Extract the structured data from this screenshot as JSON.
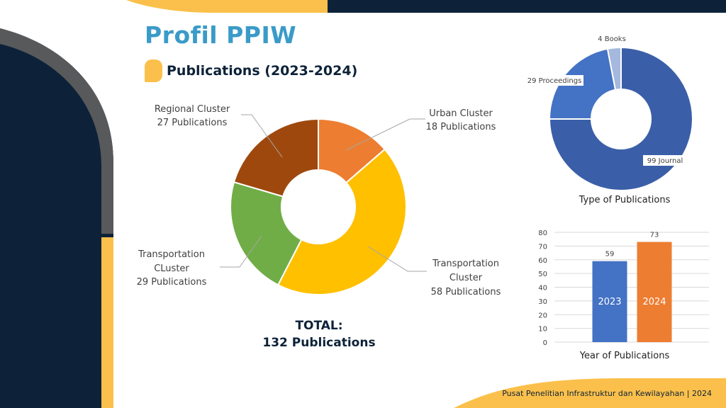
{
  "page": {
    "title": "Profil PPIW",
    "subtitle": "Publications (2023-2024)",
    "total_line1": "TOTAL:",
    "total_line2": "132 Publications",
    "footer": "Pusat Penelitian Infrastruktur dan Kewilayahan | 2024"
  },
  "colors": {
    "navy": "#0d2238",
    "accent_yellow": "#fbc04b",
    "title_blue": "#3a9bc8",
    "dark_gray": "#58595b"
  },
  "chart_data": [
    {
      "type": "pie",
      "donut": true,
      "slices": [
        {
          "label": "Urban Cluster",
          "sublabel": "18 Publications",
          "value": 18,
          "color": "#ed7d31"
        },
        {
          "label": "Transportation Cluster",
          "sublabel": "58 Publications",
          "value": 58,
          "color": "#ffc000"
        },
        {
          "label": "Transportation CLuster",
          "sublabel": "29 Publications",
          "value": 29,
          "color": "#70ad47"
        },
        {
          "label": "Regional Cluster",
          "sublabel": "27 Publications",
          "value": 27,
          "color": "#9e480e"
        }
      ]
    },
    {
      "type": "pie",
      "donut": true,
      "title": "Type of Publications",
      "slices": [
        {
          "label": "99 Journal",
          "value": 99,
          "color": "#3a5fa8"
        },
        {
          "label": "29 Proceedings",
          "value": 29,
          "color": "#4472c4"
        },
        {
          "label": "4 Books",
          "value": 4,
          "color": "#a5b8de"
        }
      ]
    },
    {
      "type": "bar",
      "title": "Year of Publications",
      "categories": [
        "2023",
        "2024"
      ],
      "values": [
        59,
        73
      ],
      "colors": [
        "#4472c4",
        "#ed7d31"
      ],
      "ylim": [
        0,
        80
      ],
      "yticks": [
        0,
        10,
        20,
        30,
        40,
        50,
        60,
        70,
        80
      ],
      "grid": true
    }
  ]
}
